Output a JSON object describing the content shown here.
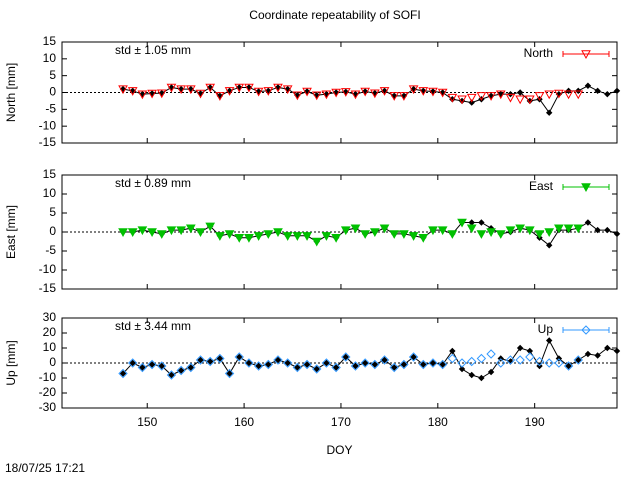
{
  "title": "Coordinate repeatability of SOFI",
  "footer": "18/07/25 17:21",
  "chart_data": [
    {
      "type": "line",
      "ylabel": "North [mm]",
      "annotation": "std ± 1.05 mm",
      "annotation_color": "#ff0000",
      "xlim": [
        141.2,
        198.5
      ],
      "xticks": [
        150,
        160,
        170,
        180,
        190
      ],
      "ylim": [
        -15,
        15
      ],
      "yticks": [
        -15,
        -10,
        -5,
        0,
        5,
        10,
        15
      ],
      "x": [
        147.5,
        148.5,
        149.5,
        150.5,
        151.5,
        152.5,
        153.5,
        154.5,
        155.5,
        156.5,
        157.5,
        158.5,
        159.5,
        160.5,
        161.5,
        162.5,
        163.5,
        164.5,
        165.5,
        166.5,
        167.5,
        168.5,
        169.5,
        170.5,
        171.5,
        172.5,
        173.5,
        174.5,
        175.5,
        176.5,
        177.5,
        178.5,
        179.5,
        180.5,
        181.5,
        182.5,
        183.5,
        184.5,
        185.5,
        186.5,
        187.5,
        188.5,
        189.5,
        190.5,
        191.5,
        192.5,
        193.5,
        194.5,
        195.5,
        196.5,
        197.5,
        198.5
      ],
      "series": [
        {
          "color": "#000000",
          "marker": "diamond",
          "values": [
            1,
            0.5,
            -0.5,
            -0.3,
            -0.2,
            1.5,
            1,
            1,
            -0.3,
            1.5,
            -1,
            0.5,
            1.5,
            1.5,
            0.3,
            0.5,
            1.5,
            1,
            -0.8,
            0.3,
            -0.8,
            -0.5,
            0,
            0.2,
            -0.5,
            0.3,
            -0.2,
            0.5,
            -1,
            -1,
            1,
            0.5,
            0.3,
            0,
            -2,
            -2.5,
            -3,
            -2,
            -1,
            -0.5,
            -0.5,
            0,
            -2.5,
            -2,
            -6,
            -0.5,
            0.5,
            0.5,
            2,
            0.5,
            -0.5,
            0.5
          ]
        },
        {
          "name": "North",
          "color": "#ff0000",
          "marker": "triangle-down-open",
          "values": [
            1,
            0.5,
            -0.5,
            -0.3,
            -0.2,
            1.5,
            1,
            1,
            -0.3,
            1.5,
            -1,
            0.5,
            1.5,
            1.5,
            0.3,
            0.5,
            1.5,
            1,
            -0.8,
            0.3,
            -0.8,
            -0.5,
            0,
            0.2,
            -0.5,
            0.3,
            -0.2,
            0.5,
            -1,
            -1,
            1,
            0.5,
            0.3,
            0,
            -1.5,
            -2,
            -1.5,
            -1,
            -1,
            -0.5,
            -1.5,
            -2,
            -2,
            -1,
            -0.5,
            -0.3,
            -0.5,
            -0.5,
            null,
            null,
            null,
            null
          ]
        }
      ]
    },
    {
      "type": "line",
      "ylabel": "East [mm]",
      "annotation": "std ± 0.89 mm",
      "annotation_color": "#00c000",
      "xlim": [
        141.2,
        198.5
      ],
      "xticks": [
        150,
        160,
        170,
        180,
        190
      ],
      "ylim": [
        -15,
        15
      ],
      "yticks": [
        -15,
        -10,
        -5,
        0,
        5,
        10,
        15
      ],
      "x": [
        147.5,
        148.5,
        149.5,
        150.5,
        151.5,
        152.5,
        153.5,
        154.5,
        155.5,
        156.5,
        157.5,
        158.5,
        159.5,
        160.5,
        161.5,
        162.5,
        163.5,
        164.5,
        165.5,
        166.5,
        167.5,
        168.5,
        169.5,
        170.5,
        171.5,
        172.5,
        173.5,
        174.5,
        175.5,
        176.5,
        177.5,
        178.5,
        179.5,
        180.5,
        181.5,
        182.5,
        183.5,
        184.5,
        185.5,
        186.5,
        187.5,
        188.5,
        189.5,
        190.5,
        191.5,
        192.5,
        193.5,
        194.5,
        195.5,
        196.5,
        197.5,
        198.5
      ],
      "series": [
        {
          "color": "#000000",
          "marker": "diamond",
          "values": [
            0,
            0,
            0.5,
            0,
            -0.5,
            0.5,
            0.5,
            1,
            0,
            1.5,
            -1,
            -0.5,
            -1.5,
            -1.5,
            -1,
            -0.5,
            0,
            -1,
            -1,
            -1,
            -2.5,
            -1,
            -1.5,
            0.5,
            1,
            -0.5,
            0,
            1,
            -0.5,
            -0.5,
            -1,
            -1.5,
            0.5,
            0.5,
            -0.5,
            2.5,
            2.5,
            2.5,
            1,
            -0.5,
            0,
            1,
            0.5,
            -1.5,
            -3.5,
            0.5,
            0.5,
            1,
            2.5,
            0.5,
            0.5,
            -0.5
          ]
        },
        {
          "name": "East",
          "color": "#00c000",
          "marker": "triangle-down-filled",
          "values": [
            0,
            0,
            0.5,
            0,
            -0.5,
            0.5,
            0.5,
            1,
            0,
            1.5,
            -1,
            -0.5,
            -1.5,
            -1.5,
            -1,
            -0.5,
            0,
            -1,
            -1,
            -1,
            -2.5,
            -1,
            -1.5,
            0.5,
            1,
            -0.5,
            0,
            1,
            -0.5,
            -0.5,
            -1,
            -1.5,
            0.5,
            0.5,
            -0.5,
            2.5,
            1,
            -0.5,
            0,
            -0.5,
            0.5,
            1,
            0.5,
            -0.5,
            0,
            1,
            1,
            1,
            null,
            null,
            null,
            null
          ]
        }
      ]
    },
    {
      "type": "line",
      "ylabel": "Up [mm]",
      "xlabel": "DOY",
      "annotation": "std ± 3.44 mm",
      "annotation_color": "#3399ff",
      "xlim": [
        141.2,
        198.5
      ],
      "xticks": [
        150,
        160,
        170,
        180,
        190
      ],
      "ylim": [
        -30,
        30
      ],
      "yticks": [
        -30,
        -20,
        -10,
        0,
        10,
        20,
        30
      ],
      "x": [
        147.5,
        148.5,
        149.5,
        150.5,
        151.5,
        152.5,
        153.5,
        154.5,
        155.5,
        156.5,
        157.5,
        158.5,
        159.5,
        160.5,
        161.5,
        162.5,
        163.5,
        164.5,
        165.5,
        166.5,
        167.5,
        168.5,
        169.5,
        170.5,
        171.5,
        172.5,
        173.5,
        174.5,
        175.5,
        176.5,
        177.5,
        178.5,
        179.5,
        180.5,
        181.5,
        182.5,
        183.5,
        184.5,
        185.5,
        186.5,
        187.5,
        188.5,
        189.5,
        190.5,
        191.5,
        192.5,
        193.5,
        194.5,
        195.5,
        196.5,
        197.5,
        198.5
      ],
      "series": [
        {
          "color": "#000000",
          "marker": "diamond",
          "values": [
            -7,
            0,
            -3,
            -1,
            -2,
            -8,
            -5,
            -3,
            2,
            1,
            3,
            -7,
            4,
            0,
            -2,
            -1,
            2,
            0,
            -3,
            -1,
            -4,
            0,
            -3,
            4,
            -2,
            0,
            -1,
            2,
            -3,
            -1,
            4,
            -1,
            0,
            -1,
            8,
            -4,
            -8,
            -10,
            -6,
            3,
            1,
            10,
            8,
            -2,
            15,
            3,
            -2,
            2,
            6,
            5,
            10,
            8
          ]
        },
        {
          "name": "Up",
          "color": "#3399ff",
          "marker": "diamond-open",
          "values": [
            -7,
            0,
            -3,
            -1,
            -2,
            -8,
            -5,
            -3,
            2,
            1,
            3,
            -7,
            4,
            0,
            -2,
            -1,
            2,
            0,
            -3,
            -1,
            -4,
            0,
            -3,
            4,
            -2,
            0,
            -1,
            2,
            -3,
            -1,
            4,
            -1,
            0,
            -1,
            3,
            0,
            1,
            3,
            6,
            0,
            2,
            2,
            4,
            1,
            0,
            0,
            -2,
            2,
            null,
            null,
            null,
            null
          ]
        }
      ]
    }
  ]
}
